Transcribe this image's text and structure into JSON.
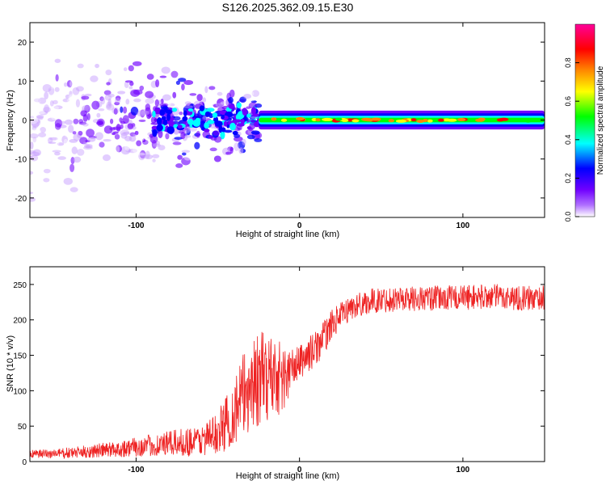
{
  "title": "S126.2025.362.09.15.E30",
  "chart_data": [
    {
      "type": "heatmap",
      "xlabel": "Height of straight line (km)",
      "ylabel": "Frequency (Hz)",
      "xlim": [
        -165,
        150
      ],
      "ylim": [
        -25,
        25
      ],
      "x_ticks": [
        -100,
        0,
        100
      ],
      "x_tick_labels": [
        "-100",
        "0",
        "100"
      ],
      "y_ticks": [
        -20,
        -10,
        0,
        10,
        20
      ],
      "y_tick_labels": [
        "-20",
        "-10",
        "0",
        "10",
        "20"
      ],
      "colorbar": {
        "label": "Normalized spectral amplitude",
        "range": [
          0.0,
          1.0
        ],
        "ticks": [
          0.0,
          0.2,
          0.4,
          0.6,
          0.8
        ],
        "tick_labels": [
          "0.0",
          "0.2",
          "0.4",
          "0.6",
          "0.8"
        ],
        "colormap": [
          "#ffffff",
          "#8800ff",
          "#0000ff",
          "#00ffff",
          "#00ff00",
          "#ffff00",
          "#ff8000",
          "#ff0000",
          "#ff0099"
        ]
      },
      "description_regions": {
        "noise_x_range": [
          -165,
          -25
        ],
        "signal_x_range": [
          -25,
          150
        ],
        "signal_center_hz": 0.0
      }
    },
    {
      "type": "line",
      "xlabel": "Height of straight line (km)",
      "ylabel": "SNR (10 * v/v)",
      "xlim": [
        -165,
        150
      ],
      "ylim": [
        0,
        275
      ],
      "x_ticks": [
        -100,
        0,
        100
      ],
      "x_tick_labels": [
        "-100",
        "0",
        "100"
      ],
      "y_ticks": [
        0,
        50,
        100,
        150,
        200,
        250
      ],
      "y_tick_labels": [
        "0",
        "50",
        "100",
        "150",
        "200",
        "250"
      ],
      "color": "#ee2222",
      "series": [
        {
          "name": "SNR",
          "x": [
            -165,
            -140,
            -110,
            -80,
            -60,
            -50,
            -40,
            -30,
            -20,
            -15,
            -10,
            -5,
            0,
            5,
            10,
            15,
            20,
            30,
            40,
            50,
            60,
            80,
            100,
            120,
            140,
            150
          ],
          "mean": [
            10,
            12,
            18,
            25,
            30,
            40,
            70,
            110,
            120,
            125,
            115,
            130,
            140,
            150,
            160,
            175,
            195,
            215,
            225,
            228,
            230,
            230,
            232,
            233,
            230,
            232
          ],
          "spread": [
            6,
            8,
            12,
            18,
            22,
            30,
            50,
            70,
            65,
            60,
            50,
            30,
            25,
            25,
            25,
            25,
            20,
            18,
            18,
            18,
            18,
            18,
            18,
            18,
            18,
            18
          ]
        }
      ]
    }
  ]
}
